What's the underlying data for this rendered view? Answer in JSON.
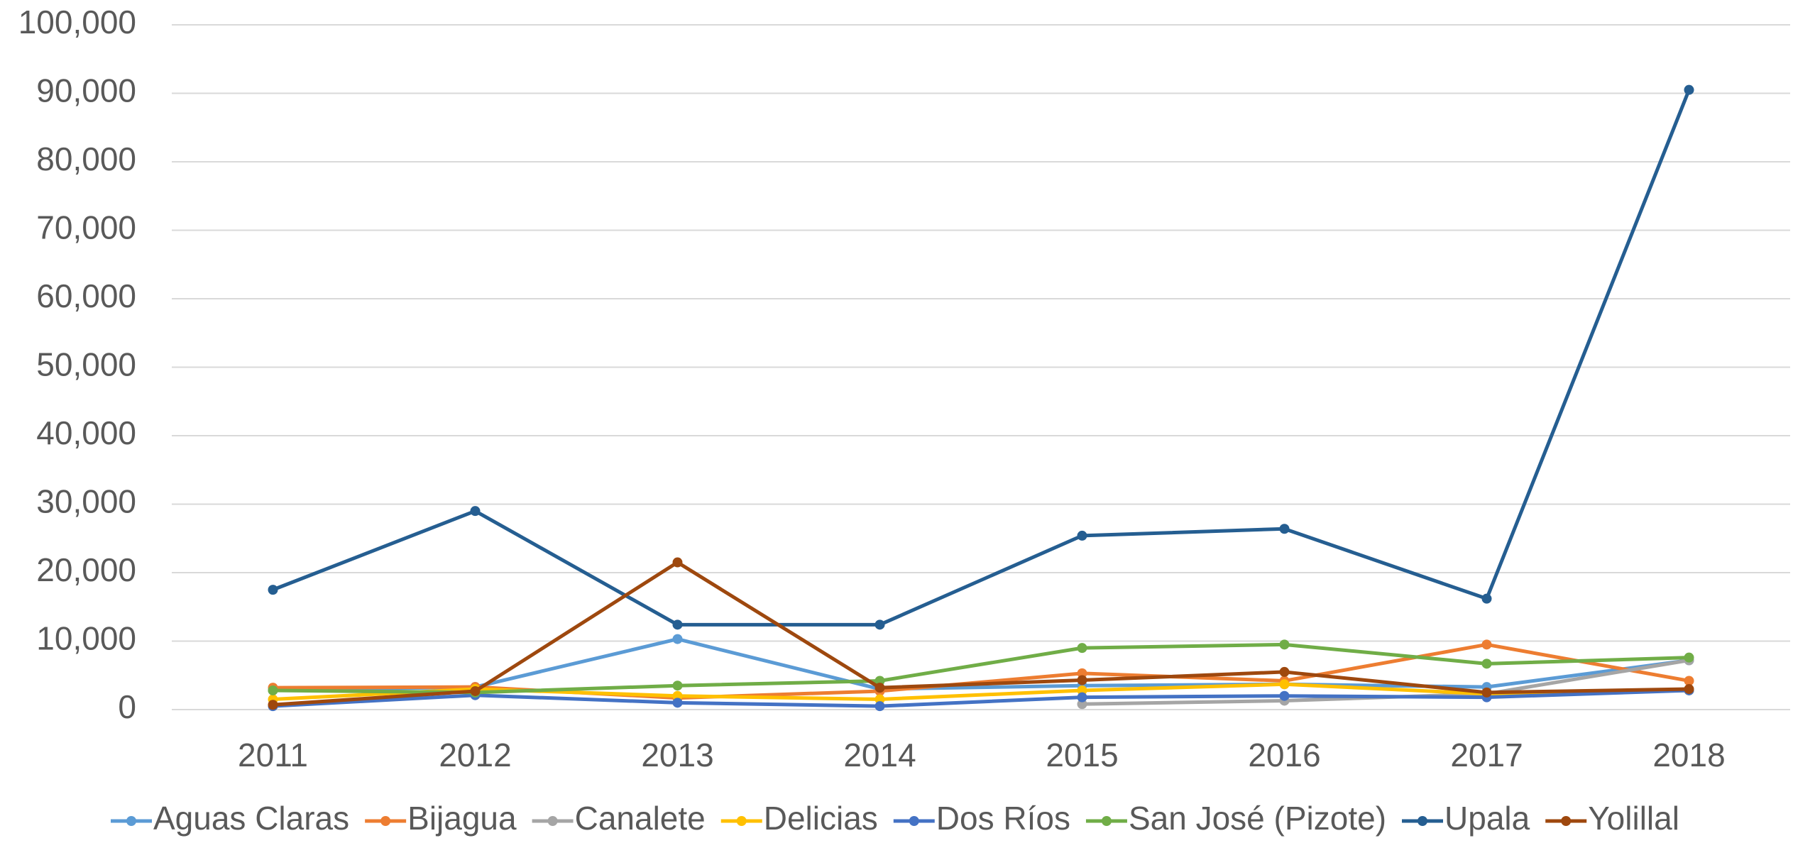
{
  "chart_data": {
    "type": "line",
    "categories": [
      "2011",
      "2012",
      "2013",
      "2014",
      "2015",
      "2016",
      "2017",
      "2018"
    ],
    "series": [
      {
        "name": "Aguas Claras",
        "color": "#5b9bd5",
        "values": [
          2800,
          3300,
          10300,
          3000,
          3500,
          3700,
          3300,
          7200
        ]
      },
      {
        "name": "Bijagua",
        "color": "#ed7d31",
        "values": [
          3200,
          3300,
          1700,
          2700,
          5300,
          4200,
          9500,
          4200
        ]
      },
      {
        "name": "Canalete",
        "color": "#a5a5a5",
        "values": [
          null,
          null,
          null,
          null,
          800,
          1300,
          2300,
          7200
        ]
      },
      {
        "name": "Delicias",
        "color": "#ffc000",
        "values": [
          1500,
          3000,
          2000,
          1500,
          2800,
          3700,
          2300,
          2800
        ]
      },
      {
        "name": "Dos Ríos",
        "color": "#4472c4",
        "values": [
          500,
          2100,
          1000,
          500,
          1800,
          2000,
          1800,
          2800
        ]
      },
      {
        "name": "San José (Pizote)",
        "color": "#70ad47",
        "values": [
          2800,
          2500,
          3500,
          4200,
          9000,
          9500,
          6700,
          7600
        ]
      },
      {
        "name": "Upala",
        "color": "#255e91",
        "values": [
          17500,
          29000,
          12400,
          12400,
          25400,
          26400,
          16200,
          90500
        ]
      },
      {
        "name": "Yolillal",
        "color": "#9e480e",
        "values": [
          700,
          2700,
          21500,
          3200,
          4300,
          5500,
          2500,
          3000
        ]
      }
    ],
    "ylim": [
      0,
      100000
    ],
    "yticks": [
      0,
      {
        "value": 10000,
        "label": "10,000"
      },
      {
        "value": 20000,
        "label": "20,000"
      },
      {
        "value": 30000,
        "label": "30,000"
      },
      {
        "value": 40000,
        "label": "40,000"
      },
      {
        "value": 50000,
        "label": "50,000"
      },
      {
        "value": 60000,
        "label": "60,000"
      },
      {
        "value": 70000,
        "label": "70,000"
      },
      {
        "value": 80000,
        "label": "80,000"
      },
      {
        "value": 90000,
        "label": "90,000"
      },
      {
        "value": 100000,
        "label": "100,000"
      }
    ],
    "grid": true,
    "legend": "bottom"
  }
}
